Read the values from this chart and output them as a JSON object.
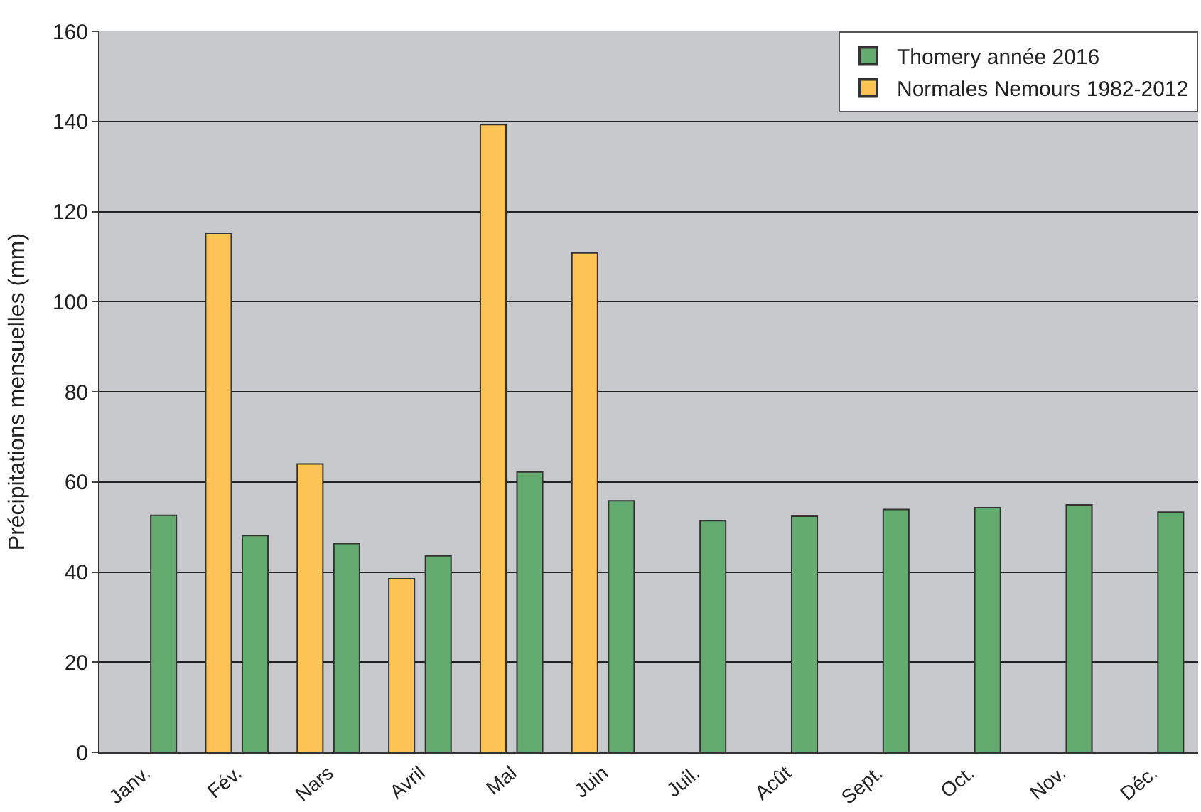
{
  "chart_data": {
    "type": "bar",
    "ylabel": "Précipitations mensuelles (mm)",
    "categories": [
      "Janv.",
      "Fév.",
      "Nars",
      "Avril",
      "Mal",
      "Juin",
      "Juil.",
      "Acût",
      "Sept.",
      "Oct.",
      "Nov.",
      "Déc."
    ],
    "series": [
      {
        "name": "Normales Nemours 1982-2012",
        "color": "#fec355",
        "values": [
          null,
          115.2,
          64.0,
          38.5,
          139.3,
          110.8,
          null,
          null,
          null,
          null,
          null,
          null
        ]
      },
      {
        "name": "Thomery année 2016",
        "color": "#64ab6f",
        "values": [
          52.6,
          48.1,
          46.3,
          43.6,
          62.2,
          55.8,
          51.4,
          52.4,
          53.9,
          54.3,
          54.9,
          53.3
        ]
      }
    ],
    "ylim": [
      0,
      160
    ],
    "yticks": [
      0,
      20,
      40,
      60,
      80,
      100,
      120,
      140,
      160
    ],
    "grid": "y",
    "legend": "top right"
  }
}
